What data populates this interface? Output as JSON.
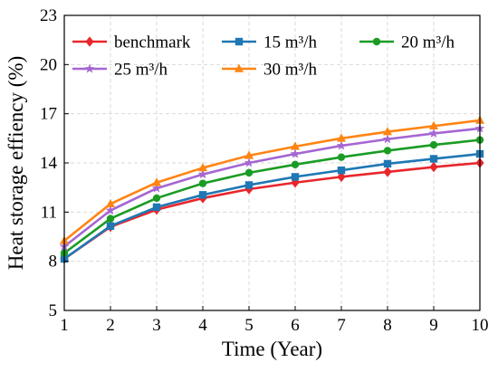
{
  "chart_data": {
    "type": "line",
    "xlabel": "Time (Year)",
    "ylabel": "Heat storage effiency (%)",
    "x": [
      1,
      2,
      3,
      4,
      5,
      6,
      7,
      8,
      9,
      10
    ],
    "xlim": [
      1,
      10
    ],
    "ylim": [
      5,
      23
    ],
    "x_ticks": [
      1,
      2,
      3,
      4,
      5,
      6,
      7,
      8,
      9,
      10
    ],
    "y_ticks": [
      5,
      8,
      11,
      14,
      17,
      20,
      23
    ],
    "grid": true,
    "legend_position": "top-left",
    "series": [
      {
        "name": "benchmark",
        "color": "#e8262b",
        "marker": "diamond",
        "values": [
          8.15,
          10.1,
          11.15,
          11.85,
          12.4,
          12.8,
          13.15,
          13.45,
          13.75,
          14.0
        ]
      },
      {
        "name": "15 m³/h",
        "color": "#1f77b4",
        "marker": "square",
        "values": [
          8.15,
          10.15,
          11.3,
          12.05,
          12.65,
          13.15,
          13.55,
          13.95,
          14.25,
          14.55
        ]
      },
      {
        "name": "20 m³/h",
        "color": "#1a9c24",
        "marker": "circle",
        "values": [
          8.5,
          10.6,
          11.85,
          12.75,
          13.4,
          13.9,
          14.35,
          14.75,
          15.1,
          15.4
        ]
      },
      {
        "name": "25 m³/h",
        "color": "#a566d3",
        "marker": "star",
        "values": [
          8.9,
          11.1,
          12.45,
          13.3,
          14.0,
          14.55,
          15.05,
          15.45,
          15.8,
          16.1
        ]
      },
      {
        "name": "30 m³/h",
        "color": "#ff8412",
        "marker": "triangle",
        "values": [
          9.25,
          11.5,
          12.8,
          13.7,
          14.45,
          15.0,
          15.5,
          15.9,
          16.25,
          16.6
        ]
      }
    ]
  }
}
